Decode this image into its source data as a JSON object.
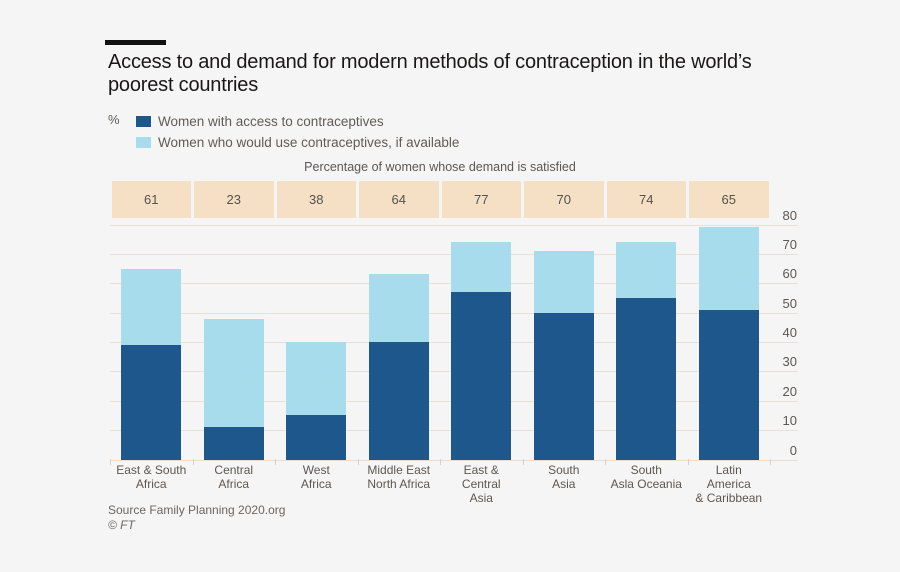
{
  "title": "Access to and demand for modern methods of contraception in the world’s poorest countries",
  "unit_label": "%",
  "legend": [
    {
      "label": "Women with access to contraceptives",
      "color": "#1d578c"
    },
    {
      "label": "Women who would use contraceptives, if available",
      "color": "#a7dcec"
    }
  ],
  "band": {
    "caption": "Percentage of women whose demand is satisfied",
    "values": [
      61,
      23,
      38,
      64,
      77,
      70,
      74,
      65
    ],
    "background": "#f5dfc5"
  },
  "chart_data": {
    "type": "bar",
    "stacked": true,
    "categories": [
      "East & South Africa",
      "Central Africa",
      "West Africa",
      "Middle East North Africa",
      "East & Central Asia",
      "South Asia",
      "South Asla Oceania",
      "Latin America & Caribbean"
    ],
    "category_labels": [
      [
        "East & South",
        "Africa"
      ],
      [
        "Central",
        "Africa"
      ],
      [
        "West",
        "Africa"
      ],
      [
        "Middle East",
        "North Africa"
      ],
      [
        "East &",
        "Central",
        "Asia"
      ],
      [
        "South",
        "Asia"
      ],
      [
        "South",
        "Asla Oceania"
      ],
      [
        "Latin",
        "America",
        "& Caribbean"
      ]
    ],
    "series": [
      {
        "name": "Women with access to contraceptives",
        "color": "#1d578c",
        "values": [
          39,
          11,
          15,
          40,
          57,
          50,
          55,
          51
        ]
      },
      {
        "name": "Women who would use contraceptives, if available",
        "color": "#a7dcec",
        "values": [
          26,
          37,
          25,
          23,
          17,
          21,
          19,
          28
        ]
      }
    ],
    "totals_demand": [
      65,
      48,
      40,
      63,
      74,
      71,
      74,
      79
    ],
    "demand_satisfied_pct": [
      61,
      23,
      38,
      64,
      77,
      70,
      74,
      65
    ],
    "ylabel": "%",
    "ylim": [
      0,
      80
    ],
    "yticks": [
      0,
      10,
      20,
      30,
      40,
      50,
      60,
      70,
      80
    ],
    "grid": true,
    "legend_position": "top-left",
    "gridline_color": "#e9dfd4"
  },
  "source": "Source Family Planning 2020.org",
  "copyright": "© FT"
}
